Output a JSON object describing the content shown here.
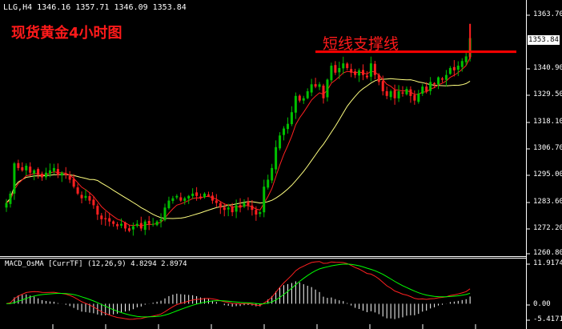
{
  "header": {
    "symbol_info": "LLG,H4  1346.16 1357.71 1346.09 1353.84",
    "chart_title": "现货黄金4小时图",
    "support_label": "短线支撑线"
  },
  "indicator": {
    "label": "MACD_OsMA [CurrTF] (12,26,9) 4.8294 2.8974"
  },
  "price_axis": {
    "ticks": [
      "1363.70",
      "1340.90",
      "1329.50",
      "1318.10",
      "1306.70",
      "1295.00",
      "1283.60",
      "1272.20",
      "1260.80"
    ],
    "current_price": "1353.84"
  },
  "macd_axis": {
    "ticks": [
      "11.9174",
      "0.00",
      "-5.4171"
    ]
  },
  "colors": {
    "background": "#000000",
    "bull_candle": "#00c000",
    "bear_candle": "#ff2020",
    "fast_ma": "#ff2020",
    "slow_ma": "#ffff80",
    "support_line": "#ff0000",
    "macd_line": "#ff2020",
    "signal_line": "#00ff00",
    "histogram": "#ffffff",
    "annotation": "#ff1a1a"
  },
  "chart_data": [
    {
      "type": "candlestick",
      "title": "",
      "ylim": [
        1260.8,
        1363.7
      ],
      "support_level": 1348.0,
      "closes": [
        1283,
        1287,
        1300,
        1298,
        1297,
        1299,
        1296,
        1297,
        1295,
        1294,
        1296,
        1297,
        1298,
        1295,
        1296,
        1295,
        1293,
        1290,
        1287,
        1285,
        1286,
        1284,
        1282,
        1278,
        1276,
        1276,
        1275,
        1274,
        1273,
        1274,
        1272,
        1271,
        1273,
        1274,
        1272,
        1275,
        1274,
        1274,
        1275,
        1276,
        1281,
        1284,
        1285,
        1286,
        1284,
        1285,
        1286,
        1287,
        1286,
        1285,
        1287,
        1286,
        1284,
        1283,
        1281,
        1280,
        1281,
        1279,
        1282,
        1281,
        1283,
        1282,
        1280,
        1278,
        1279,
        1290,
        1293,
        1298,
        1307,
        1312,
        1315,
        1317,
        1322,
        1329,
        1327,
        1328,
        1331,
        1334,
        1333,
        1334,
        1328,
        1336,
        1342,
        1339,
        1341,
        1343,
        1341,
        1339,
        1338,
        1340,
        1338,
        1337,
        1343,
        1338,
        1335,
        1331,
        1329,
        1331,
        1328,
        1331,
        1330,
        1332,
        1329,
        1327,
        1330,
        1333,
        1331,
        1335,
        1334,
        1337,
        1336,
        1338,
        1341,
        1340,
        1342,
        1344,
        1346,
        1353.84
      ]
    },
    {
      "type": "bar",
      "title": "MACD_OsMA [CurrTF] (12,26,9)",
      "ylim": [
        -5.4171,
        11.9174
      ],
      "latest": [
        4.8294,
        2.8974
      ]
    }
  ]
}
